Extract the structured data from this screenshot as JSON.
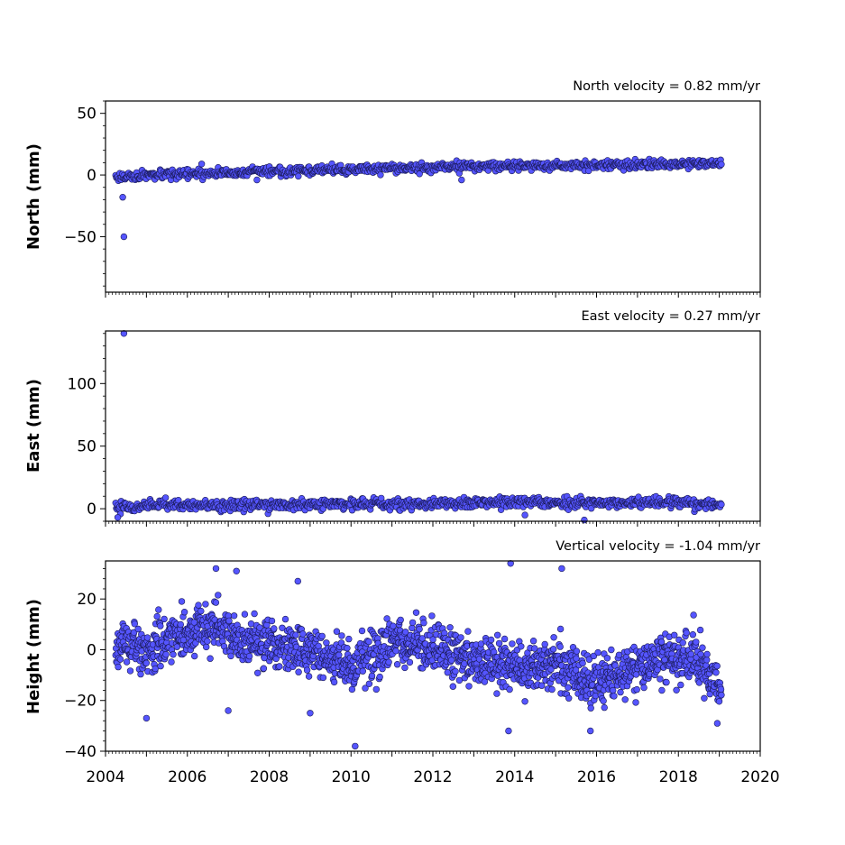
{
  "chart_data": [
    {
      "type": "scatter",
      "title": "North velocity = 0.82 mm/yr",
      "xlabel": "",
      "ylabel": "North (mm)",
      "xlim": [
        2004,
        2020
      ],
      "ylim": [
        -95,
        60
      ],
      "yticks": [
        -50,
        0,
        50
      ],
      "ytick_labels": [
        "−50",
        "0",
        "50"
      ],
      "grid": false,
      "marker_color": "#5555ff",
      "marker_edge": "#1a1a55",
      "data_span": [
        2004.25,
        2019.05
      ],
      "series": [
        {
          "trend_x": [
            2004.25,
            2006.0,
            2008.0,
            2010.0,
            2012.0,
            2014.0,
            2016.0,
            2018.0,
            2019.05
          ],
          "trend_y": [
            -1.5,
            0.5,
            3,
            4.5,
            6.5,
            7.5,
            8,
            9,
            10
          ],
          "scatter_amplitude": 2.5,
          "outliers": [
            [
              2004.42,
              -18
            ],
            [
              2004.45,
              -50
            ],
            [
              2006.35,
              9
            ],
            [
              2007.7,
              -4
            ],
            [
              2012.7,
              -4
            ]
          ]
        }
      ]
    },
    {
      "type": "scatter",
      "title": "East velocity = 0.27 mm/yr",
      "xlabel": "",
      "ylabel": "East (mm)",
      "xlim": [
        2004,
        2020
      ],
      "ylim": [
        -10,
        142
      ],
      "yticks": [
        0,
        50,
        100
      ],
      "ytick_labels": [
        "0",
        "50",
        "100"
      ],
      "grid": false,
      "marker_color": "#5555ff",
      "marker_edge": "#1a1a55",
      "data_span": [
        2004.25,
        2019.05
      ],
      "series": [
        {
          "trend_x": [
            2004.25,
            2006.0,
            2008.0,
            2010.0,
            2012.0,
            2014.0,
            2016.0,
            2018.0,
            2019.05
          ],
          "trend_y": [
            2,
            3,
            3,
            4,
            4,
            5,
            5,
            5,
            3
          ],
          "scatter_amplitude": 3,
          "outliers": [
            [
              2004.45,
              140
            ],
            [
              2004.3,
              -7
            ],
            [
              2014.25,
              -5
            ],
            [
              2015.7,
              -9
            ]
          ]
        }
      ]
    },
    {
      "type": "scatter",
      "title": "Vertical velocity = -1.04 mm/yr",
      "xlabel": "",
      "ylabel": "Height (mm)",
      "xlim": [
        2004,
        2020
      ],
      "ylim": [
        -40,
        35
      ],
      "yticks": [
        -40,
        -20,
        0,
        20
      ],
      "ytick_labels": [
        "−40",
        "−20",
        "0",
        "20"
      ],
      "xticks": [
        2004,
        2006,
        2008,
        2010,
        2012,
        2014,
        2016,
        2018,
        2020
      ],
      "xtick_labels": [
        "2004",
        "2006",
        "2008",
        "2010",
        "2012",
        "2014",
        "2016",
        "2018",
        "2020"
      ],
      "grid": false,
      "marker_color": "#5555ff",
      "marker_edge": "#1a1a55",
      "data_span": [
        2004.25,
        2019.05
      ],
      "series": [
        {
          "trend_x": [
            2004.25,
            2005.0,
            2006.0,
            2006.7,
            2007.5,
            2009.0,
            2010.0,
            2011.5,
            2012.5,
            2014.0,
            2015.0,
            2015.8,
            2016.5,
            2017.5,
            2018.5,
            2019.05
          ],
          "trend_y": [
            3,
            0,
            7,
            9,
            2,
            0,
            -6,
            4,
            -2,
            -7,
            -5,
            -13,
            -10,
            -4,
            -3,
            -15
          ],
          "scatter_amplitude": 7,
          "outliers": [
            [
              2006.7,
              32
            ],
            [
              2007.2,
              31
            ],
            [
              2008.7,
              27
            ],
            [
              2013.9,
              34
            ],
            [
              2015.15,
              32
            ],
            [
              2005.0,
              -27
            ],
            [
              2010.1,
              -38
            ],
            [
              2013.85,
              -32
            ],
            [
              2015.85,
              -32
            ],
            [
              2018.95,
              -29
            ],
            [
              2009.0,
              -25
            ],
            [
              2007.0,
              -24
            ]
          ]
        }
      ]
    }
  ]
}
